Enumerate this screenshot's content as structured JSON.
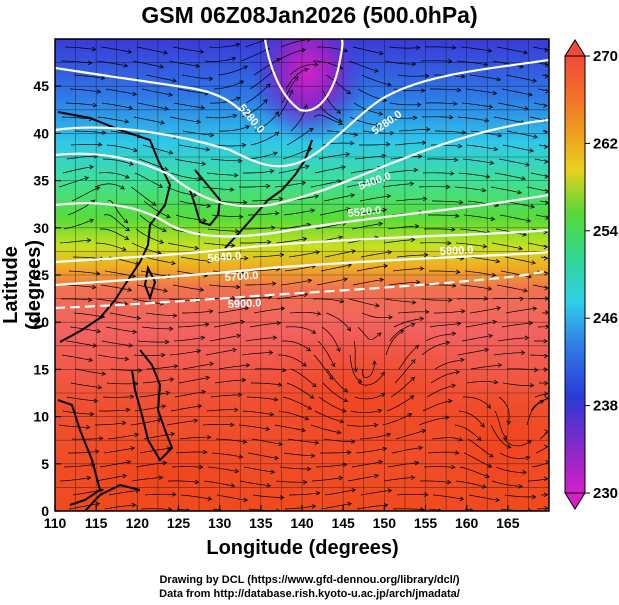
{
  "title": "GSM 06Z08Jan2026 (500.0hPa)",
  "xlabel": "Longitude (degrees)",
  "ylabel": "Latitude  (degrees)",
  "credits": [
    "Drawing by DCL (https://www.gfd-dennou.org/library/dcl/)",
    "Data from http://database.rish.kyoto-u.ac.jp/arch/jmadata/"
  ],
  "map": {
    "lon_range": [
      110,
      170
    ],
    "lat_range": [
      0,
      50
    ],
    "x_ticks": [
      "110",
      "115",
      "120",
      "125",
      "130",
      "135",
      "140",
      "145",
      "150",
      "155",
      "160",
      "165"
    ],
    "y_ticks": [
      "0",
      "5",
      "10",
      "15",
      "20",
      "25",
      "30",
      "35",
      "40",
      "45"
    ],
    "grid": true,
    "contour_labels": [
      "5280.0",
      "5280.0",
      "5400.0",
      "5520.0",
      "5640.0",
      "5700.0",
      "5800.0",
      "5900.0"
    ],
    "colorbar": {
      "labels": [
        "270",
        "262",
        "254",
        "246",
        "238",
        "230"
      ],
      "range": [
        230,
        270
      ]
    },
    "colors": {
      "cold_core": "#d420c8",
      "blue": "#2a52d8",
      "cyan": "#2fd0e8",
      "green": "#40d040",
      "warm": "#f06060",
      "hot": "#f04018"
    }
  }
}
